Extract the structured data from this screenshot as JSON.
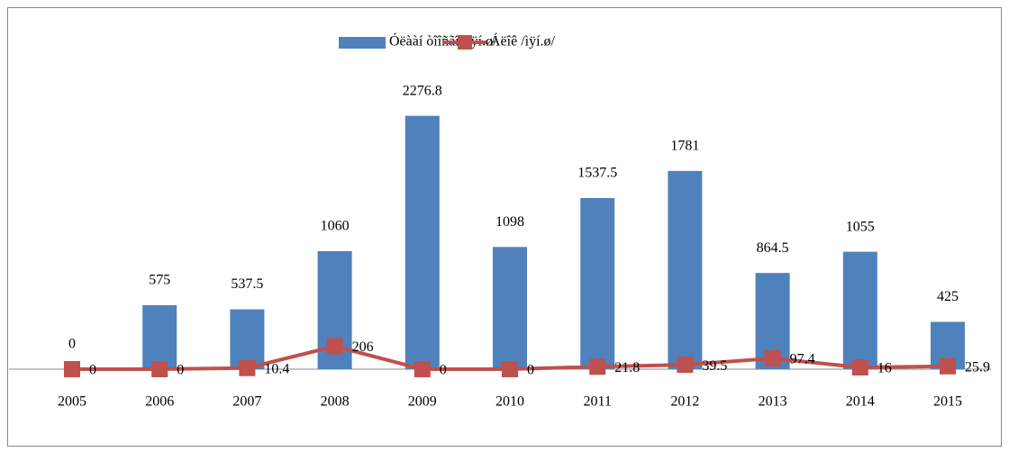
{
  "chart_data": {
    "type": "bar",
    "categories": [
      "2005",
      "2006",
      "2007",
      "2008",
      "2009",
      "2010",
      "2011",
      "2012",
      "2013",
      "2014",
      "2015"
    ],
    "series": [
      {
        "name": "Óëààí òîîñãî /ìÿí.ø/",
        "type": "bar",
        "color": "#4f81bd",
        "values": [
          0,
          575,
          537.5,
          1060,
          2276.8,
          1098,
          1537.5,
          1781,
          864.5,
          1055,
          425
        ]
      },
      {
        "name": "Áëîê /ìÿí.ø/",
        "type": "line",
        "color": "#c0504d",
        "values": [
          0,
          0,
          10.4,
          206,
          0,
          0,
          21.8,
          39.5,
          97.4,
          16,
          25.9
        ]
      }
    ],
    "ylim": [
      0,
      2500
    ],
    "legend": "top"
  }
}
